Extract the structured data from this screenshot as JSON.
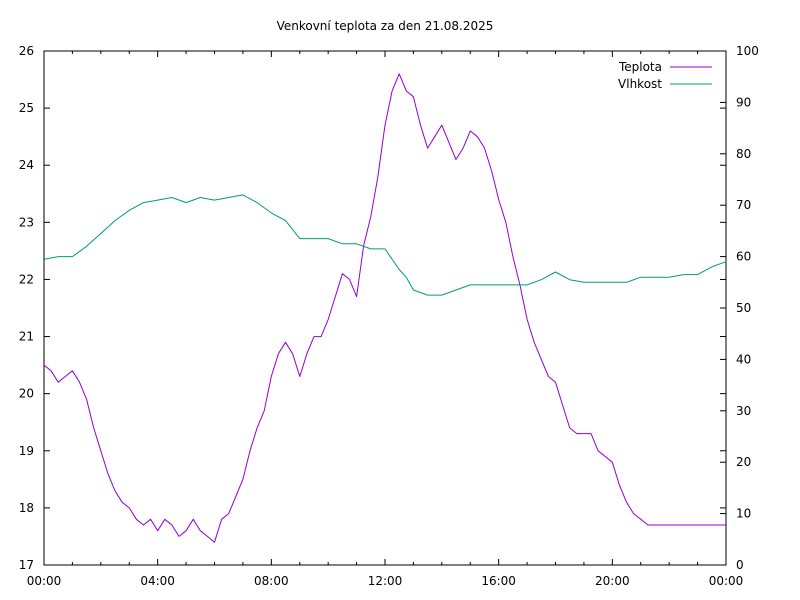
{
  "chart_data": {
    "type": "line",
    "title": "Venkovní teplota za den 21.08.2025",
    "x_ticks": [
      "00:00",
      "04:00",
      "08:00",
      "12:00",
      "16:00",
      "20:00",
      "00:00"
    ],
    "xlim_hours": [
      0,
      24
    ],
    "y_left_ticks": [
      "17",
      "18",
      "19",
      "20",
      "21",
      "22",
      "23",
      "24",
      "25",
      "26"
    ],
    "ylim_left": [
      17,
      26
    ],
    "y_right_ticks": [
      "0",
      "10",
      "20",
      "30",
      "40",
      "50",
      "60",
      "70",
      "80",
      "90",
      "100"
    ],
    "ylim_right": [
      0,
      100
    ],
    "grid": false,
    "legend_position": "top-right",
    "series": [
      {
        "name": "Teplota",
        "axis": "left",
        "color": "#9400d3",
        "x": [
          0,
          0.25,
          0.5,
          0.75,
          1,
          1.25,
          1.5,
          1.75,
          2,
          2.25,
          2.5,
          2.75,
          3,
          3.25,
          3.5,
          3.75,
          4,
          4.25,
          4.5,
          4.75,
          5,
          5.25,
          5.5,
          5.75,
          6,
          6.25,
          6.5,
          6.75,
          7,
          7.25,
          7.5,
          7.75,
          8,
          8.25,
          8.5,
          8.75,
          9,
          9.25,
          9.5,
          9.75,
          10,
          10.25,
          10.5,
          10.75,
          11,
          11.25,
          11.5,
          11.75,
          12,
          12.25,
          12.5,
          12.75,
          13,
          13.25,
          13.5,
          13.75,
          14,
          14.25,
          14.5,
          14.75,
          15,
          15.25,
          15.5,
          15.75,
          16,
          16.25,
          16.5,
          16.75,
          17,
          17.25,
          17.5,
          17.75,
          18,
          18.25,
          18.5,
          18.75,
          19,
          19.25,
          19.5,
          19.75,
          20,
          20.25,
          20.5,
          20.75,
          21,
          21.25,
          21.5,
          21.75,
          22,
          22.25,
          22.5,
          22.75,
          23,
          23.25,
          23.5,
          23.75,
          24
        ],
        "values": [
          20.5,
          20.4,
          20.2,
          20.3,
          20.4,
          20.2,
          19.9,
          19.4,
          19.0,
          18.6,
          18.3,
          18.1,
          18.0,
          17.8,
          17.7,
          17.8,
          17.6,
          17.8,
          17.7,
          17.5,
          17.6,
          17.8,
          17.6,
          17.5,
          17.4,
          17.8,
          17.9,
          18.2,
          18.5,
          19.0,
          19.4,
          19.7,
          20.3,
          20.7,
          20.9,
          20.7,
          20.3,
          20.7,
          21.0,
          21.0,
          21.3,
          21.7,
          22.1,
          22.0,
          21.7,
          22.6,
          23.1,
          23.8,
          24.7,
          25.3,
          25.6,
          25.3,
          25.2,
          24.7,
          24.3,
          24.5,
          24.7,
          24.4,
          24.1,
          24.3,
          24.6,
          24.5,
          24.3,
          23.9,
          23.4,
          23.0,
          22.4,
          21.9,
          21.3,
          20.9,
          20.6,
          20.3,
          20.2,
          19.8,
          19.4,
          19.3,
          19.3,
          19.3,
          19.0,
          18.9,
          18.8,
          18.4,
          18.1,
          17.9,
          17.8,
          17.7,
          17.7,
          17.7,
          17.7,
          17.7,
          17.7,
          17.7,
          17.7,
          17.7,
          17.7,
          17.7,
          17.7
        ]
      },
      {
        "name": "Vlhkost",
        "axis": "right",
        "color": "#009e73",
        "x": [
          0,
          0.5,
          1,
          1.5,
          2,
          2.5,
          3,
          3.5,
          4,
          4.5,
          5,
          5.5,
          6,
          6.5,
          7,
          7.5,
          8,
          8.5,
          9,
          9.5,
          10,
          10.5,
          11,
          11.5,
          12,
          12.25,
          12.5,
          12.75,
          13,
          13.5,
          14,
          14.5,
          15,
          15.5,
          16,
          16.5,
          17,
          17.5,
          18,
          18.5,
          19,
          19.5,
          20,
          20.5,
          21,
          21.5,
          22,
          22.5,
          23,
          23.5,
          24
        ],
        "values": [
          59.5,
          60.0,
          60.0,
          62.0,
          64.5,
          67.0,
          69.0,
          70.5,
          71.0,
          71.5,
          70.5,
          71.5,
          71.0,
          71.5,
          72.0,
          70.5,
          68.5,
          67.0,
          63.5,
          63.5,
          63.5,
          62.5,
          62.5,
          61.5,
          61.5,
          59.5,
          57.5,
          56.0,
          53.5,
          52.5,
          52.5,
          53.5,
          54.5,
          54.5,
          54.5,
          54.5,
          54.5,
          55.5,
          57.0,
          55.5,
          55.0,
          55.0,
          55.0,
          55.0,
          56.0,
          56.0,
          56.0,
          56.5,
          56.5,
          58.0,
          59.0
        ]
      }
    ]
  }
}
